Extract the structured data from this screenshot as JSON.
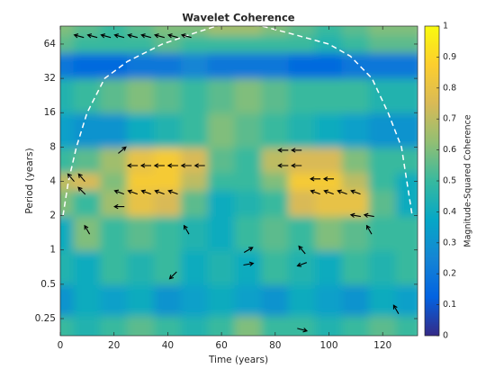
{
  "chart_data": {
    "type": "heatmap",
    "title": "Wavelet Coherence",
    "x_label": "Time (years)",
    "y_label": "Period (years)",
    "colorbar_label": "Magnitude-Squared Coherence",
    "colormap": "parula",
    "yscale": "log",
    "x": [
      0,
      10,
      20,
      30,
      40,
      50,
      60,
      70,
      80,
      90,
      100,
      110,
      120,
      130
    ],
    "y": [
      0.2,
      0.35,
      0.7,
      1.4,
      2.8,
      4,
      5.7,
      11,
      23,
      45,
      64,
      90
    ],
    "values": [
      [
        0.5,
        0.45,
        0.5,
        0.55,
        0.5,
        0.45,
        0.5,
        0.6,
        0.5,
        0.5,
        0.45,
        0.5,
        0.55,
        0.5
      ],
      [
        0.3,
        0.4,
        0.35,
        0.4,
        0.3,
        0.35,
        0.4,
        0.35,
        0.3,
        0.4,
        0.35,
        0.3,
        0.4,
        0.35
      ],
      [
        0.45,
        0.4,
        0.5,
        0.45,
        0.5,
        0.4,
        0.45,
        0.4,
        0.5,
        0.45,
        0.4,
        0.5,
        0.45,
        0.5
      ],
      [
        0.4,
        0.6,
        0.5,
        0.55,
        0.5,
        0.45,
        0.4,
        0.5,
        0.55,
        0.5,
        0.6,
        0.55,
        0.5,
        0.5
      ],
      [
        0.6,
        0.5,
        0.65,
        0.8,
        0.75,
        0.55,
        0.4,
        0.45,
        0.5,
        0.75,
        0.8,
        0.8,
        0.55,
        0.4
      ],
      [
        0.7,
        0.75,
        0.6,
        0.85,
        0.85,
        0.7,
        0.5,
        0.5,
        0.6,
        0.85,
        0.85,
        0.7,
        0.5,
        0.4
      ],
      [
        0.5,
        0.55,
        0.65,
        0.8,
        0.85,
        0.75,
        0.55,
        0.5,
        0.7,
        0.75,
        0.75,
        0.6,
        0.5,
        0.5
      ],
      [
        0.35,
        0.3,
        0.3,
        0.4,
        0.45,
        0.5,
        0.6,
        0.55,
        0.5,
        0.45,
        0.4,
        0.35,
        0.3,
        0.3
      ],
      [
        0.45,
        0.5,
        0.55,
        0.6,
        0.55,
        0.5,
        0.55,
        0.6,
        0.55,
        0.5,
        0.5,
        0.5,
        0.45,
        0.45
      ],
      [
        0.2,
        0.15,
        0.15,
        0.2,
        0.2,
        0.25,
        0.2,
        0.2,
        0.2,
        0.15,
        0.15,
        0.2,
        0.2,
        0.2
      ],
      [
        0.55,
        0.5,
        0.5,
        0.5,
        0.55,
        0.5,
        0.5,
        0.5,
        0.5,
        0.5,
        0.45,
        0.5,
        0.55,
        0.55
      ],
      [
        0.6,
        0.55,
        0.5,
        0.55,
        0.6,
        0.6,
        0.65,
        0.65,
        0.6,
        0.55,
        0.5,
        0.55,
        0.6,
        0.6
      ]
    ],
    "coi": {
      "x": [
        1,
        3,
        6,
        10,
        16.5,
        25,
        38,
        50,
        58,
        66,
        75,
        85,
        100,
        108,
        116,
        122,
        127,
        131
      ],
      "y": [
        2,
        4,
        8,
        16,
        32,
        45,
        64,
        80,
        92,
        95,
        92,
        80,
        64,
        50,
        32,
        16,
        8,
        2
      ],
      "color": "#ffffff"
    },
    "arrows": {
      "x": [
        7,
        12,
        17,
        22,
        27,
        32,
        37,
        42,
        47,
        27,
        32,
        37,
        42,
        47,
        52,
        22,
        27,
        32,
        37,
        42,
        4,
        8,
        8,
        22,
        23,
        83,
        88,
        83,
        88,
        95,
        100,
        95,
        100,
        105,
        110,
        110,
        115,
        10,
        47,
        42,
        70,
        70,
        90,
        90,
        115,
        125,
        90
      ],
      "y": [
        75,
        75,
        75,
        75,
        75,
        75,
        75,
        75,
        75,
        5.5,
        5.5,
        5.5,
        5.5,
        5.5,
        5.5,
        3.2,
        3.2,
        3.2,
        3.2,
        3.2,
        4.3,
        4.3,
        3.3,
        2.4,
        7.5,
        7.5,
        7.5,
        5.5,
        5.5,
        4.2,
        4.2,
        3.2,
        3.2,
        3.2,
        3.2,
        2.0,
        2.0,
        1.5,
        1.5,
        0.6,
        1.0,
        0.75,
        1.0,
        0.75,
        1.5,
        0.3,
        0.2
      ],
      "angle": [
        165,
        165,
        165,
        165,
        165,
        165,
        165,
        165,
        165,
        180,
        180,
        180,
        180,
        180,
        180,
        160,
        160,
        160,
        160,
        160,
        130,
        130,
        135,
        180,
        40,
        180,
        180,
        180,
        180,
        180,
        180,
        160,
        160,
        160,
        160,
        170,
        170,
        120,
        120,
        225,
        30,
        10,
        130,
        200,
        120,
        120,
        -15
      ],
      "color": "#000000"
    },
    "xlim": [
      0,
      133
    ],
    "xticks": [
      0,
      20,
      40,
      60,
      80,
      100,
      120
    ],
    "ylim": [
      0.177,
      92
    ],
    "yticks": [
      0.25,
      0.5,
      1,
      2,
      4,
      8,
      16,
      32,
      64
    ],
    "clim": [
      0,
      1
    ],
    "cticks": [
      0,
      0.1,
      0.2,
      0.3,
      0.4,
      0.5,
      0.6,
      0.7,
      0.8,
      0.9,
      1
    ]
  }
}
